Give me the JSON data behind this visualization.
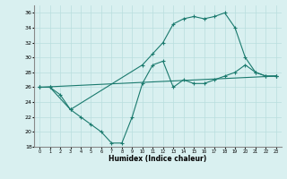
{
  "xlabel": "Humidex (Indice chaleur)",
  "line1_x": [
    0,
    1,
    2,
    3,
    10,
    11,
    12,
    13,
    14,
    15,
    16,
    17,
    18,
    19,
    20,
    21,
    22,
    23
  ],
  "line1_y": [
    26,
    26,
    25,
    23,
    29,
    30.5,
    32,
    34.5,
    35.2,
    35.5,
    35.2,
    35.5,
    36,
    34,
    30,
    28,
    27.5,
    27.5
  ],
  "line2_x": [
    0,
    1,
    3,
    4,
    5,
    6,
    7,
    8,
    9,
    10,
    11,
    12,
    13,
    14,
    15,
    16,
    17,
    18,
    19,
    20,
    21,
    22,
    23
  ],
  "line2_y": [
    26,
    26,
    23,
    22,
    21,
    20,
    18.5,
    18.5,
    22,
    26.5,
    29,
    29.5,
    26,
    27,
    26.5,
    26.5,
    27,
    27.5,
    28,
    29,
    28,
    27.5,
    27.5
  ],
  "line3_x": [
    0,
    23
  ],
  "line3_y": [
    26,
    27.5
  ],
  "color": "#1a7a6e",
  "bg_color": "#d9f0f0",
  "grid_color": "#b8dede",
  "ylim": [
    18,
    37
  ],
  "xlim": [
    -0.5,
    23.5
  ],
  "yticks": [
    18,
    20,
    22,
    24,
    26,
    28,
    30,
    32,
    34,
    36
  ],
  "xticks": [
    0,
    1,
    2,
    3,
    4,
    5,
    6,
    7,
    8,
    9,
    10,
    11,
    12,
    13,
    14,
    15,
    16,
    17,
    18,
    19,
    20,
    21,
    22,
    23
  ]
}
